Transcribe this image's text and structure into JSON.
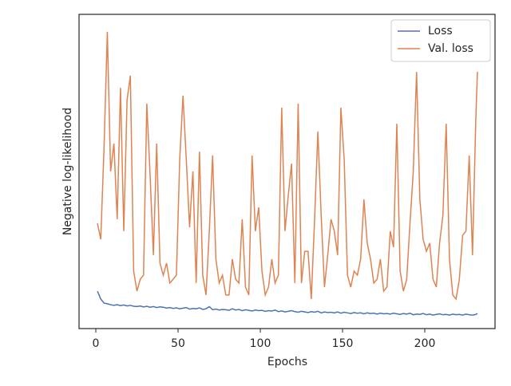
{
  "chart_data": {
    "type": "line",
    "xlabel": "Epochs",
    "ylabel": "Negative log-likelihood",
    "x": [
      1,
      3,
      5,
      7,
      9,
      11,
      13,
      15,
      17,
      19,
      21,
      23,
      25,
      27,
      29,
      31,
      33,
      35,
      37,
      39,
      41,
      43,
      45,
      47,
      49,
      51,
      53,
      55,
      57,
      59,
      61,
      63,
      65,
      67,
      69,
      71,
      73,
      75,
      77,
      79,
      81,
      83,
      85,
      87,
      89,
      91,
      93,
      95,
      97,
      99,
      101,
      103,
      105,
      107,
      109,
      111,
      113,
      115,
      117,
      119,
      121,
      123,
      125,
      127,
      129,
      131,
      133,
      135,
      137,
      139,
      141,
      143,
      145,
      147,
      149,
      151,
      153,
      155,
      157,
      159,
      161,
      163,
      165,
      167,
      169,
      171,
      173,
      175,
      177,
      179,
      181,
      183,
      185,
      187,
      189,
      191,
      193,
      195,
      197,
      199,
      201,
      203,
      205,
      207,
      209,
      211,
      213,
      215,
      217,
      219,
      221,
      223,
      225,
      227,
      229,
      231,
      232
    ],
    "series": [
      {
        "name": "Loss",
        "color": "#4c72b0",
        "values": [
          11.9,
          9.4,
          8.1,
          7.9,
          7.6,
          7.4,
          7.6,
          7.3,
          7.5,
          7.2,
          7.4,
          7.1,
          7.0,
          7.2,
          6.9,
          7.1,
          6.8,
          7.0,
          6.7,
          6.9,
          6.8,
          6.5,
          6.7,
          6.4,
          6.6,
          6.3,
          6.5,
          6.7,
          6.2,
          6.4,
          6.3,
          6.6,
          6.1,
          6.3,
          7.0,
          6.0,
          6.2,
          5.9,
          6.1,
          6.0,
          5.8,
          6.3,
          5.9,
          6.1,
          5.7,
          6.0,
          5.8,
          5.6,
          5.9,
          5.7,
          5.8,
          5.5,
          5.7,
          5.6,
          5.9,
          5.4,
          5.6,
          5.3,
          5.5,
          5.7,
          5.4,
          5.2,
          5.5,
          5.3,
          5.1,
          5.4,
          5.2,
          5.5,
          5.0,
          5.3,
          5.1,
          5.2,
          5.0,
          5.3,
          4.9,
          5.2,
          5.0,
          4.8,
          5.1,
          4.9,
          5.0,
          4.7,
          5.0,
          4.8,
          4.9,
          4.6,
          4.9,
          4.7,
          4.8,
          4.6,
          4.9,
          4.7,
          4.5,
          4.8,
          4.6,
          4.9,
          4.4,
          4.6,
          4.5,
          4.8,
          4.4,
          4.6,
          4.3,
          4.5,
          4.7,
          4.4,
          4.5,
          4.3,
          4.6,
          4.4,
          4.5,
          4.3,
          4.6,
          4.4,
          4.3,
          4.5,
          4.8
        ]
      },
      {
        "name": "Val. loss",
        "color": "#dd8452",
        "values": [
          33.5,
          28.4,
          57.6,
          94.4,
          50.0,
          58.9,
          34.8,
          76.6,
          31.0,
          72.8,
          80.5,
          18.3,
          11.9,
          15.7,
          17.0,
          71.6,
          48.7,
          23.4,
          58.9,
          20.8,
          17.0,
          20.8,
          14.5,
          15.7,
          17.0,
          53.8,
          74.1,
          53.8,
          32.2,
          50.0,
          14.5,
          56.3,
          17.0,
          10.7,
          31.0,
          55.1,
          22.1,
          14.5,
          17.0,
          10.7,
          10.7,
          22.1,
          15.7,
          14.5,
          34.8,
          13.2,
          10.7,
          55.1,
          31.0,
          38.6,
          18.3,
          10.7,
          13.2,
          22.1,
          14.5,
          17.0,
          70.3,
          31.0,
          42.4,
          52.5,
          14.5,
          71.6,
          14.5,
          24.6,
          24.6,
          9.4,
          34.8,
          62.7,
          36.0,
          13.2,
          23.4,
          34.8,
          31.0,
          23.4,
          70.3,
          53.8,
          17.0,
          13.2,
          18.3,
          17.0,
          22.1,
          41.1,
          27.2,
          22.1,
          14.5,
          15.7,
          22.1,
          11.9,
          13.2,
          31.0,
          25.9,
          65.2,
          18.3,
          11.9,
          15.7,
          33.5,
          50.0,
          81.7,
          41.1,
          28.4,
          24.6,
          27.2,
          15.7,
          13.2,
          27.2,
          36.0,
          65.2,
          22.1,
          10.7,
          9.4,
          15.7,
          29.7,
          31.0,
          55.1,
          23.4,
          66.5,
          81.7
        ]
      }
    ],
    "xlim": [
      -10.2,
      242.7
    ],
    "xticks": [
      0,
      50,
      100,
      150,
      200
    ],
    "ylim": [
      0,
      100
    ],
    "legend": "upper right"
  }
}
